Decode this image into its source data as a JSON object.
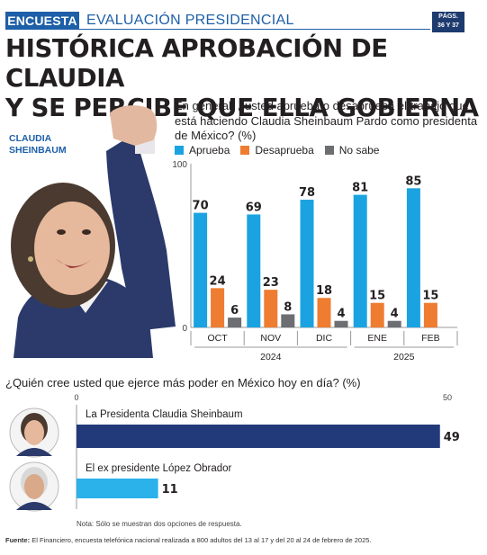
{
  "header": {
    "tag": "ENCUESTA",
    "section": "EVALUACIÓN PRESIDENCIAL",
    "pages_line1": "PÁGS.",
    "pages_line2": "36 Y 37",
    "headline_line1": "HISTÓRICA APROBACIÓN DE CLAUDIA",
    "headline_line2": "Y SE PERCIBE QUE ELLA GOBIERNA"
  },
  "person": {
    "label_line1": "CLAUDIA",
    "label_line2": "SHEINBAUM"
  },
  "chart1": {
    "question": "En general, ¿usted aprueba o desaprueba el trabajo que está haciendo Claudia Sheinbaum Pardo como presidenta de México? (%)"
  },
  "chart2": {
    "question": "¿Quién cree usted que ejerce más poder en México hoy en día? (%)"
  },
  "note": "Nota: Sólo se muestran dos opciones de respuesta.",
  "source_label": "Fuente:",
  "source_text": "El Financiero, encuesta telefónica nacional realizada a 800 adultos del 13 al 17 y del 20 al 24 de febrero de 2025.",
  "colors": {
    "aprueba": "#1aa3e0",
    "desaprueba": "#ee7d31",
    "nosabe": "#6d6e71",
    "navy": "#233a7a",
    "light_blue": "#2bb2ea",
    "brand": "#1d5fa8"
  },
  "chart_data": [
    {
      "type": "bar",
      "title": "",
      "categories": [
        "OCT",
        "NOV",
        "DIC",
        "ENE",
        "FEB"
      ],
      "year_groups": [
        {
          "label": "2024",
          "categories": [
            "OCT",
            "NOV",
            "DIC"
          ]
        },
        {
          "label": "2025",
          "categories": [
            "ENE",
            "FEB"
          ]
        }
      ],
      "series": [
        {
          "name": "Aprueba",
          "values": [
            70,
            69,
            78,
            81,
            85
          ]
        },
        {
          "name": "Desaprueba",
          "values": [
            24,
            23,
            18,
            15,
            15
          ]
        },
        {
          "name": "No sabe",
          "values": [
            6,
            8,
            4,
            4,
            null
          ]
        }
      ],
      "ylim": [
        0,
        100
      ],
      "yticks": [
        0,
        100
      ],
      "legend": "top-left",
      "grid": false
    },
    {
      "type": "bar",
      "orientation": "horizontal",
      "title": "",
      "categories": [
        "La Presidenta Claudia Sheinbaum",
        "El ex presidente López Obrador"
      ],
      "values": [
        49,
        11
      ],
      "xlim": [
        0,
        50
      ],
      "xticks": [
        0,
        50
      ],
      "grid": false
    }
  ]
}
